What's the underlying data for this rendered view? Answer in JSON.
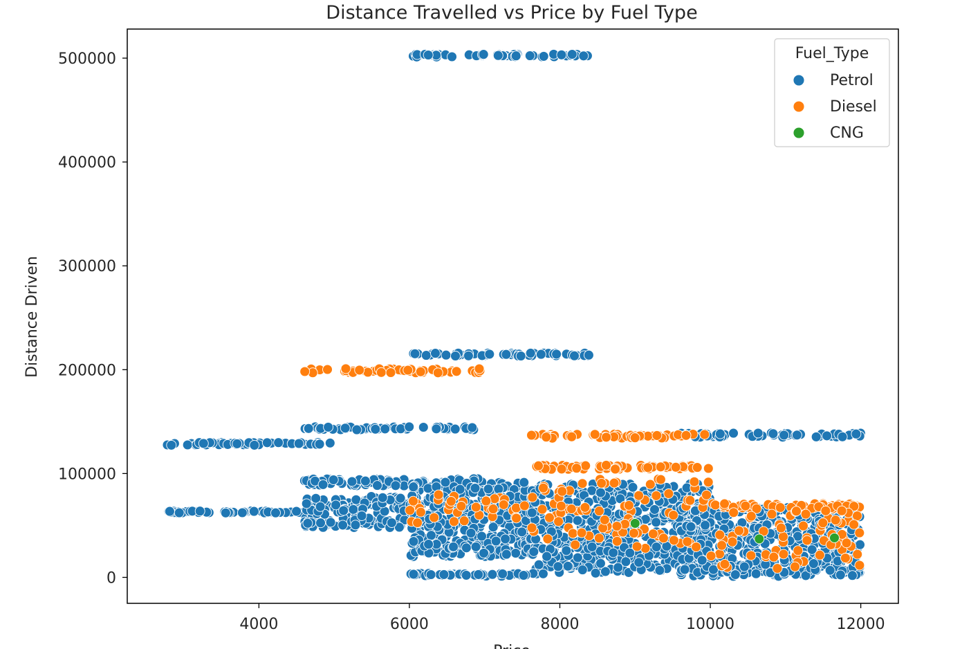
{
  "chart_data": {
    "type": "scatter",
    "title": "Distance Travelled vs Price by Fuel Type",
    "xlabel": "Price",
    "ylabel": "Distance Driven",
    "xlim": [
      2250,
      12500
    ],
    "ylim": [
      -25000,
      528000
    ],
    "xticks": [
      4000,
      6000,
      8000,
      10000,
      12000
    ],
    "yticks": [
      0,
      100000,
      200000,
      300000,
      400000,
      500000
    ],
    "grid": false,
    "legend": {
      "title": "Fuel_Type",
      "position": "top-right"
    },
    "series": [
      {
        "name": "Petrol",
        "color": "#1f77b4",
        "bands": [
          {
            "x": [
              6000,
              8400
            ],
            "y": [
              501000,
              504000
            ]
          },
          {
            "x": [
              6000,
              8400
            ],
            "y": [
              213000,
              216000
            ]
          },
          {
            "x": [
              2700,
              5000
            ],
            "y": [
              127000,
              130000
            ]
          },
          {
            "x": [
              4600,
              7000
            ],
            "y": [
              142000,
              145000
            ]
          },
          {
            "x": [
              9600,
              12000
            ],
            "y": [
              135000,
              139000
            ]
          },
          {
            "x": [
              2800,
              4600
            ],
            "y": [
              62000,
              64000
            ]
          },
          {
            "x": [
              4600,
              7000
            ],
            "y": [
              88000,
              95000
            ]
          },
          {
            "x": [
              4600,
              6000
            ],
            "y": [
              48000,
              78000
            ]
          },
          {
            "x": [
              6000,
              7600
            ],
            "y": [
              20000,
              92000
            ]
          },
          {
            "x": [
              7600,
              10000
            ],
            "y": [
              4000,
              90000
            ]
          },
          {
            "x": [
              9600,
              12000
            ],
            "y": [
              1000,
              68000
            ]
          },
          {
            "x": [
              6000,
              7800
            ],
            "y": [
              1000,
              4000
            ]
          }
        ],
        "counts": [
          55,
          55,
          50,
          55,
          55,
          45,
          90,
          160,
          420,
          520,
          520,
          45
        ]
      },
      {
        "name": "Diesel",
        "color": "#ff7f0e",
        "bands": [
          {
            "x": [
              4600,
              7000
            ],
            "y": [
              197000,
              201000
            ]
          },
          {
            "x": [
              7600,
              10000
            ],
            "y": [
              134000,
              138000
            ]
          },
          {
            "x": [
              7600,
              10000
            ],
            "y": [
              104000,
              108000
            ]
          },
          {
            "x": [
              6000,
              7600
            ],
            "y": [
              52000,
              80000
            ]
          },
          {
            "x": [
              7600,
              10000
            ],
            "y": [
              28000,
              95000
            ]
          },
          {
            "x": [
              10000,
              12000
            ],
            "y": [
              66000,
              71000
            ]
          },
          {
            "x": [
              10000,
              12000
            ],
            "y": [
              8000,
              65000
            ]
          }
        ],
        "counts": [
          55,
          55,
          60,
          35,
          85,
          65,
          70
        ]
      },
      {
        "name": "CNG",
        "color": "#2ca02c",
        "points": [
          [
            9000,
            52000
          ],
          [
            10650,
            37000
          ],
          [
            11650,
            38000
          ]
        ]
      }
    ]
  }
}
